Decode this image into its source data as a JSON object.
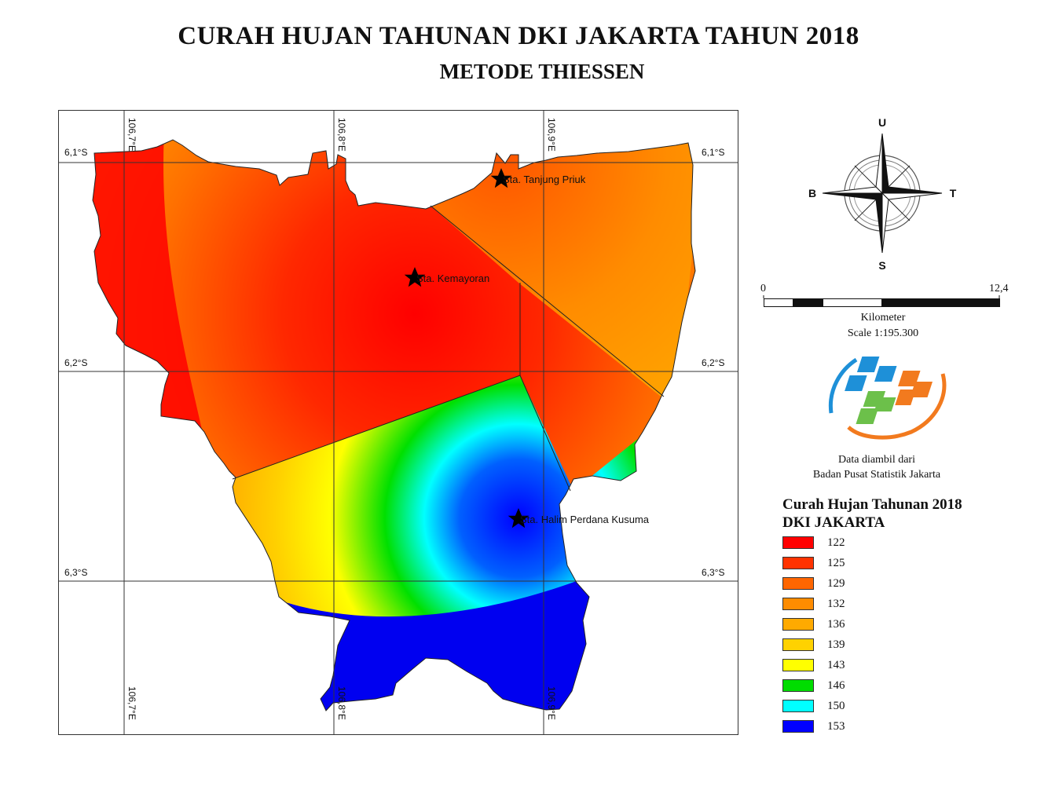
{
  "title": "CURAH HUJAN TAHUNAN DKI JAKARTA TAHUN 2018",
  "subtitle": "METODE THIESSEN",
  "map": {
    "lat_labels": [
      "6,1°S",
      "6,2°S",
      "6,3°S"
    ],
    "lon_labels": [
      "106,7°E",
      "106,8°E",
      "106,9°E"
    ],
    "stations": [
      {
        "name": "Sta. Tanjung Priuk"
      },
      {
        "name": "Sta. Kemayoran"
      },
      {
        "name": "Sta. Halim Perdana Kusuma"
      }
    ]
  },
  "compass": {
    "north": "U",
    "south": "S",
    "west": "B",
    "east": "T",
    "icon": "compass-rose-icon"
  },
  "scalebar": {
    "min": "0",
    "max": "12,4",
    "unit": "Kilometer",
    "scale": "Scale 1:195.300"
  },
  "source": {
    "line1": "Data diambil dari",
    "line2": "Badan Pusat Statistik Jakarta",
    "logo": "bps-logo"
  },
  "legend": {
    "title_line1": "Curah Hujan Tahunan 2018",
    "title_line2": "DKI JAKARTA",
    "items": [
      {
        "label": "122",
        "color": "#ff0000"
      },
      {
        "label": "125",
        "color": "#ff3300"
      },
      {
        "label": "129",
        "color": "#ff6600"
      },
      {
        "label": "132",
        "color": "#ff8c00"
      },
      {
        "label": "136",
        "color": "#ffaa00"
      },
      {
        "label": "139",
        "color": "#ffd200"
      },
      {
        "label": "143",
        "color": "#ffff00"
      },
      {
        "label": "146",
        "color": "#00dd00"
      },
      {
        "label": "150",
        "color": "#00ffff"
      },
      {
        "label": "153",
        "color": "#0000ff"
      }
    ]
  }
}
